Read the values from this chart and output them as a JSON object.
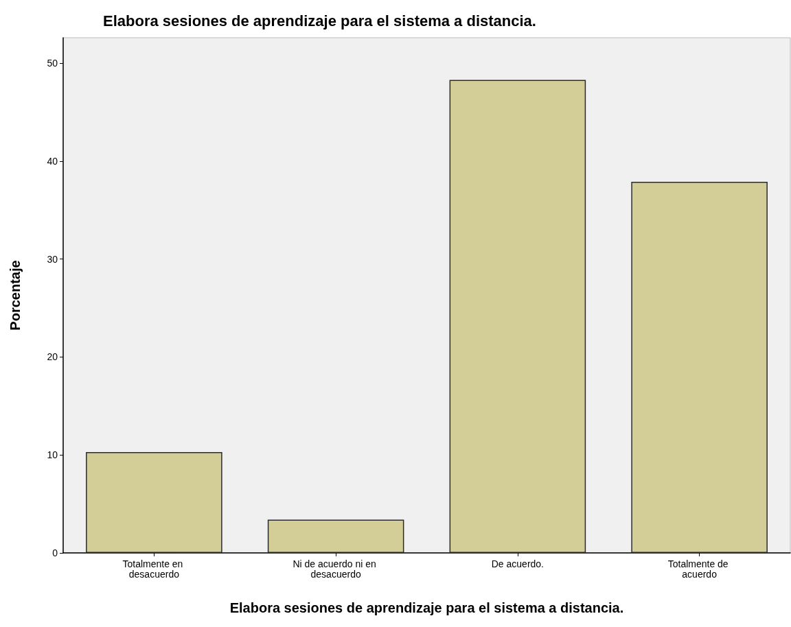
{
  "chart_data": {
    "type": "bar",
    "title": "Elabora sesiones de aprendizaje para el sistema a distancia.",
    "xlabel": "Elabora sesiones de aprendizaje para el sistema a distancia.",
    "ylabel": "Porcentaje",
    "categories": [
      "Totalmente en desacuerdo",
      "Ni de acuerdo ni en desacuerdo",
      "De acuerdo.",
      "Totalmente de acuerdo"
    ],
    "values": [
      10.3,
      3.4,
      48.3,
      37.9
    ],
    "color": "#d3ce97",
    "ylim": [
      0,
      52.6
    ],
    "yticks": [
      0,
      10,
      20,
      30,
      40,
      50
    ],
    "grid": false
  }
}
